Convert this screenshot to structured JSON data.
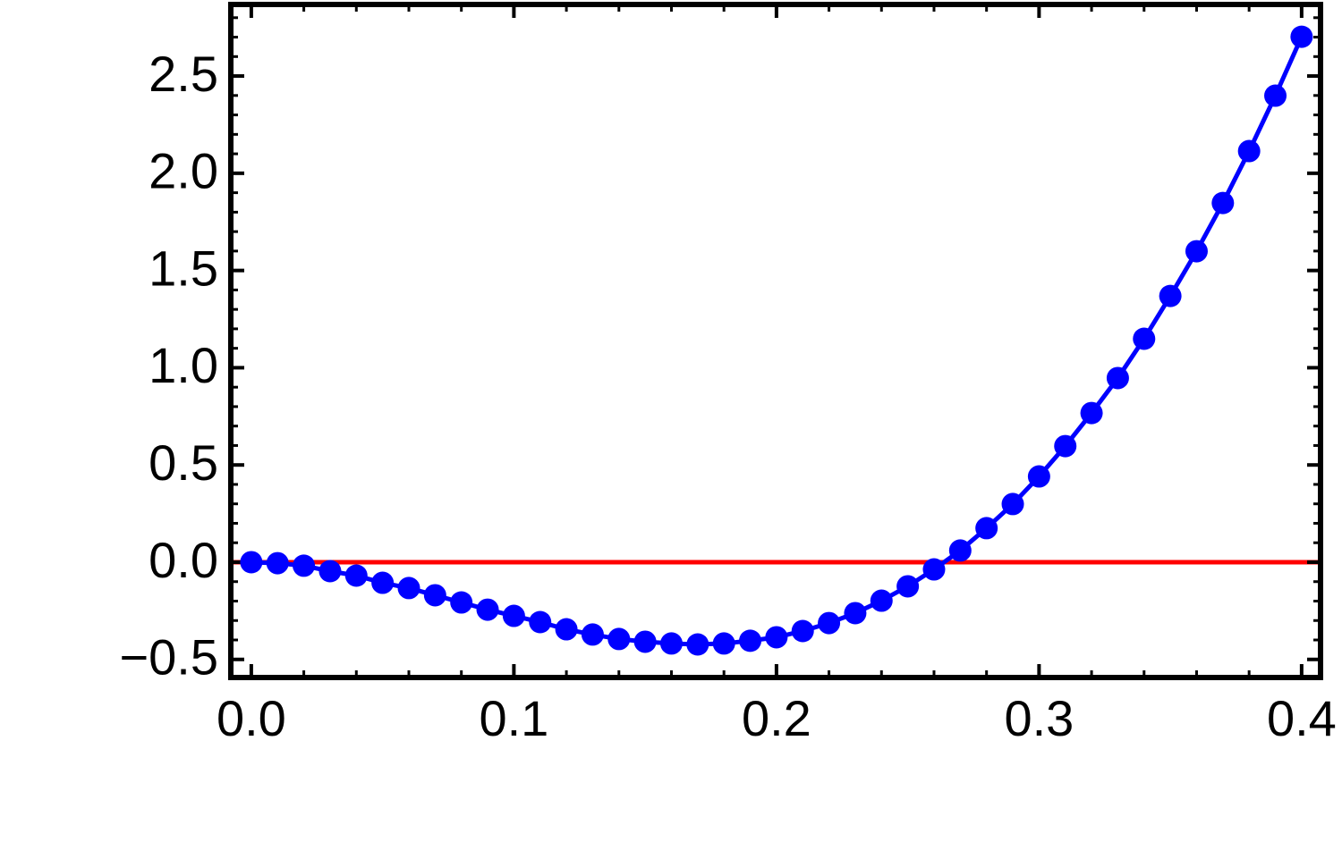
{
  "chart_data": {
    "type": "line",
    "x": [
      0,
      0.01,
      0.02,
      0.03,
      0.04,
      0.05,
      0.06,
      0.07,
      0.08,
      0.09,
      0.1,
      0.11,
      0.12,
      0.13,
      0.14,
      0.15,
      0.16,
      0.17,
      0.18,
      0.19,
      0.2,
      0.21,
      0.22,
      0.23,
      0.24,
      0.25,
      0.26,
      0.27,
      0.28,
      0.29,
      0.3,
      0.31,
      0.32,
      0.33,
      0.34,
      0.35,
      0.36,
      0.37,
      0.38,
      0.39,
      0.4
    ],
    "series": [
      {
        "color": "#0000ff",
        "markers": true,
        "values": [
          0,
          -0.005,
          -0.018,
          -0.046,
          -0.069,
          -0.106,
          -0.133,
          -0.17,
          -0.207,
          -0.244,
          -0.276,
          -0.308,
          -0.345,
          -0.372,
          -0.395,
          -0.409,
          -0.418,
          -0.423,
          -0.418,
          -0.404,
          -0.386,
          -0.354,
          -0.313,
          -0.262,
          -0.198,
          -0.124,
          -0.037,
          0.06,
          0.175,
          0.299,
          0.441,
          0.597,
          0.767,
          0.947,
          1.149,
          1.369,
          1.599,
          1.847,
          2.114,
          2.399,
          2.702
        ]
      }
    ],
    "hlines": [
      {
        "value": 0,
        "color": "#ff0000"
      }
    ],
    "xlim": [
      -0.0078,
      0.4072
    ],
    "ylim": [
      -0.593,
      2.868
    ],
    "xticks": [
      {
        "value": 0,
        "label": "0.0"
      },
      0.1,
      0.2,
      0.3,
      0.4
    ],
    "yticks": [
      {
        "value": -0.5,
        "label": "−0.5"
      },
      {
        "value": 0,
        "label": "0.0"
      },
      0.5,
      {
        "value": 1,
        "label": "1.0"
      },
      1.5,
      {
        "value": 2,
        "label": "2.0"
      },
      2.5
    ],
    "xminor": [
      0.02,
      0.04,
      0.06,
      0.08,
      0.12,
      0.14,
      0.16,
      0.18,
      0.22,
      0.24,
      0.26,
      0.28,
      0.32,
      0.34,
      0.36,
      0.38
    ],
    "yminor": [
      -0.4,
      -0.3,
      -0.2,
      -0.1,
      0.1,
      0.2,
      0.3,
      0.4,
      0.6,
      0.7,
      0.8,
      0.9,
      1.1,
      1.2,
      1.3,
      1.4,
      1.6,
      1.7,
      1.8,
      1.9,
      2.1,
      2.2,
      2.3,
      2.4,
      2.6,
      2.7,
      2.8
    ]
  }
}
